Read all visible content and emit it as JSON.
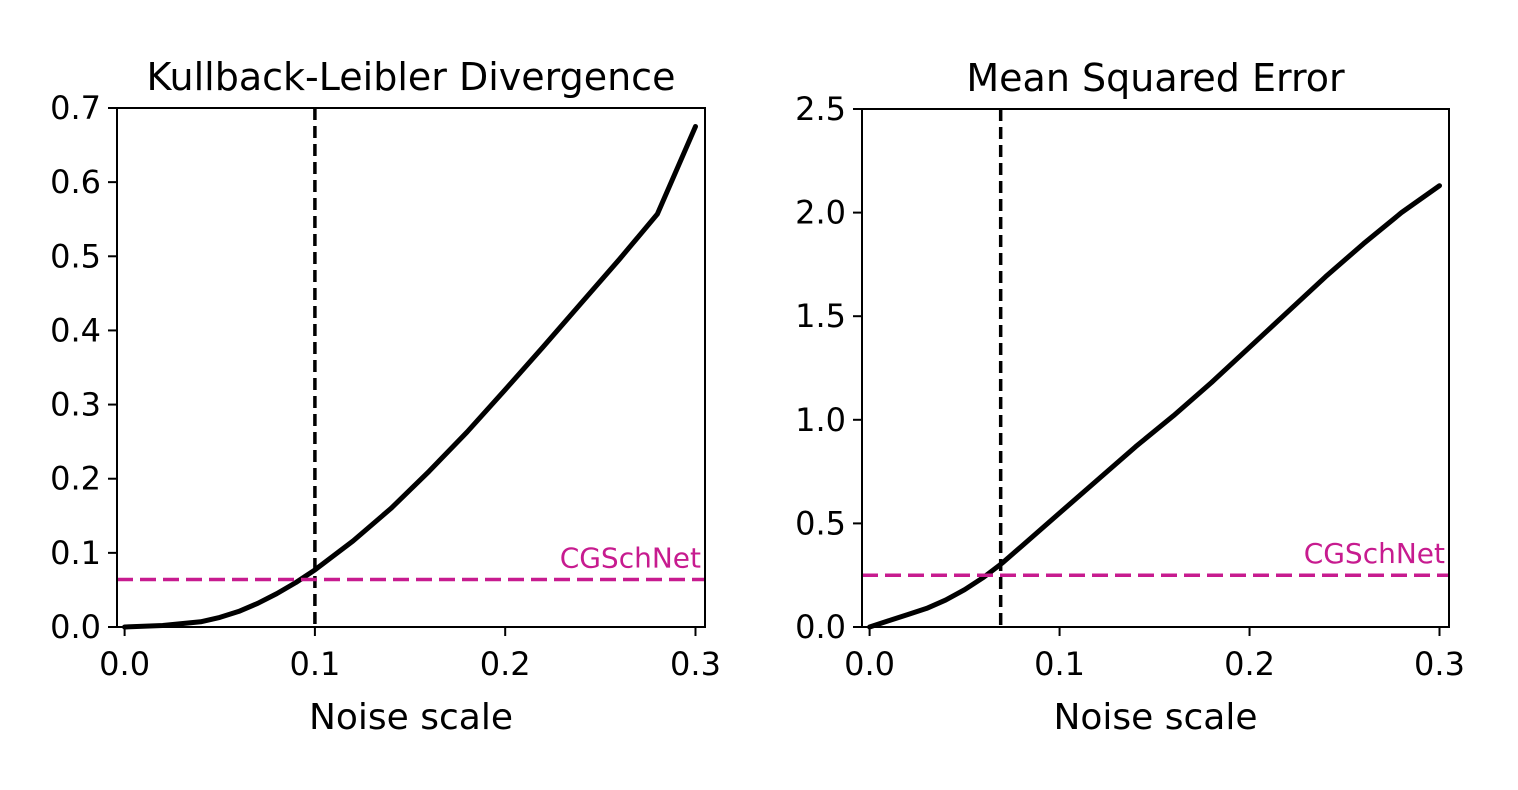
{
  "chart_data": [
    {
      "type": "line",
      "title": "Kullback-Leibler Divergence",
      "xlabel": "Noise scale",
      "ylabel": "",
      "xlim": [
        -0.004,
        0.305
      ],
      "ylim": [
        0.0,
        0.7
      ],
      "xticks": [
        0.0,
        0.1,
        0.2,
        0.3
      ],
      "xtick_labels": [
        "0.0",
        "0.1",
        "0.2",
        "0.3"
      ],
      "yticks": [
        0.0,
        0.1,
        0.2,
        0.3,
        0.4,
        0.5,
        0.6,
        0.7
      ],
      "ytick_labels": [
        "0.0",
        "0.1",
        "0.2",
        "0.3",
        "0.4",
        "0.5",
        "0.6",
        "0.7"
      ],
      "grid": false,
      "series": [
        {
          "color": "#000000",
          "x": [
            0.0,
            0.02,
            0.04,
            0.05,
            0.06,
            0.07,
            0.08,
            0.09,
            0.1,
            0.12,
            0.14,
            0.16,
            0.18,
            0.2,
            0.22,
            0.24,
            0.26,
            0.28,
            0.3
          ],
          "y": [
            0.0,
            0.002,
            0.007,
            0.013,
            0.021,
            0.032,
            0.045,
            0.06,
            0.077,
            0.116,
            0.16,
            0.21,
            0.263,
            0.32,
            0.378,
            0.437,
            0.496,
            0.557,
            0.675
          ]
        }
      ],
      "vline": {
        "x": 0.1,
        "color": "#000000"
      },
      "hline": {
        "y": 0.064,
        "color": "#c71b8f",
        "label": "CGSchNet"
      }
    },
    {
      "type": "line",
      "title": "Mean Squared Error",
      "xlabel": "Noise scale",
      "ylabel": "",
      "xlim": [
        -0.004,
        0.305
      ],
      "ylim": [
        0.0,
        2.5
      ],
      "xticks": [
        0.0,
        0.1,
        0.2,
        0.3
      ],
      "xtick_labels": [
        "0.0",
        "0.1",
        "0.2",
        "0.3"
      ],
      "yticks": [
        0.0,
        0.5,
        1.0,
        1.5,
        2.0,
        2.5
      ],
      "ytick_labels": [
        "0.0",
        "0.5",
        "1.0",
        "1.5",
        "2.0",
        "2.5"
      ],
      "grid": false,
      "series": [
        {
          "color": "#000000",
          "x": [
            0.0,
            0.01,
            0.02,
            0.03,
            0.04,
            0.05,
            0.06,
            0.07,
            0.08,
            0.1,
            0.12,
            0.14,
            0.16,
            0.18,
            0.2,
            0.22,
            0.24,
            0.26,
            0.28,
            0.3
          ],
          "y": [
            0.0,
            0.03,
            0.06,
            0.09,
            0.13,
            0.18,
            0.24,
            0.31,
            0.39,
            0.55,
            0.71,
            0.87,
            1.02,
            1.18,
            1.35,
            1.52,
            1.69,
            1.85,
            2.0,
            2.13
          ]
        }
      ],
      "vline": {
        "x": 0.069,
        "color": "#000000"
      },
      "hline": {
        "y": 0.25,
        "color": "#c71b8f",
        "label": "CGSchNet"
      }
    }
  ]
}
